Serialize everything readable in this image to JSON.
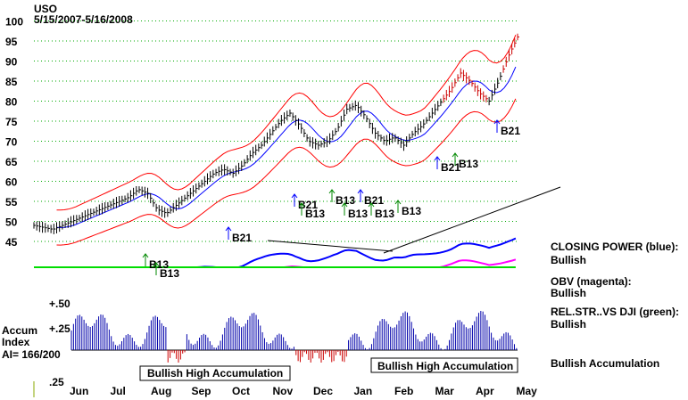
{
  "chart_data": {
    "type": "line",
    "title": "USO",
    "subtitle": "5/15/2007-5/16/2008",
    "price_axis": {
      "ticks": [
        45,
        50,
        55,
        60,
        65,
        70,
        75,
        80,
        85,
        90,
        95,
        100
      ],
      "ylim": [
        42,
        104
      ]
    },
    "months": [
      "Jun",
      "Jul",
      "Aug",
      "Sep",
      "Oct",
      "Nov",
      "Dec",
      "Jan",
      "Feb",
      "Mar",
      "Apr",
      "May"
    ],
    "price_series": {
      "name": "USO price",
      "x": [
        0,
        5,
        10,
        15,
        20,
        25,
        30,
        35,
        40,
        45,
        50,
        55,
        60,
        65,
        70,
        75,
        80,
        85,
        90,
        95,
        100,
        105,
        110,
        115,
        120,
        125,
        130,
        135,
        140,
        145,
        150,
        155,
        160,
        165,
        170,
        175,
        180,
        185,
        190,
        195,
        200,
        205,
        210,
        215,
        220,
        225,
        230,
        235,
        240,
        245,
        250,
        255
      ],
      "values": [
        49,
        48.5,
        48,
        49,
        50,
        51,
        52,
        53,
        54,
        55,
        56,
        58,
        57,
        53,
        52,
        54,
        56,
        58,
        60,
        62,
        63,
        62,
        64,
        67,
        69,
        72,
        75,
        77,
        74,
        70,
        69,
        70,
        73,
        78,
        79,
        76,
        72,
        70,
        71,
        69,
        72,
        74,
        77,
        80,
        83,
        87,
        85,
        82,
        80,
        85,
        91,
        96
      ]
    },
    "series": [
      {
        "name": "Closing Power",
        "color": "#0000ff",
        "trend": "Bullish"
      },
      {
        "name": "OBV",
        "color": "#ff00ff",
        "trend": "Bullish"
      },
      {
        "name": "Rel.Str. vs DJI",
        "color": "#00dd00",
        "trend": "Bullish"
      },
      {
        "name": "Upper band",
        "color": "#ff0000"
      },
      {
        "name": "Lower band",
        "color": "#ff0000"
      },
      {
        "name": "Moving average",
        "color": "#0000ff"
      }
    ],
    "signals": [
      {
        "label": "B13",
        "type": "buy"
      },
      {
        "label": "B13",
        "type": "buy"
      },
      {
        "label": "B21",
        "type": "buy"
      },
      {
        "label": "B13",
        "type": "buy"
      },
      {
        "label": "B21",
        "type": "buy"
      },
      {
        "label": "B13",
        "type": "buy"
      },
      {
        "label": "B13",
        "type": "buy"
      },
      {
        "label": "B21",
        "type": "buy"
      },
      {
        "label": "B13",
        "type": "buy"
      },
      {
        "label": "B13",
        "type": "buy"
      },
      {
        "label": "B21",
        "type": "buy"
      },
      {
        "label": "B13",
        "type": "buy"
      },
      {
        "label": "B21",
        "type": "buy"
      }
    ],
    "accum_axis": {
      "ticks": [
        "+.50",
        "+.25",
        ".25"
      ],
      "ylim": [
        -0.25,
        0.5
      ]
    },
    "accum_label": [
      "Accum",
      "Index"
    ],
    "ai_value": "AI= 166/200",
    "accum_boxes": [
      "Bullish High Accumulation",
      "Bullish High Accumulation"
    ],
    "legend": [
      {
        "label": "CLOSING POWER (blue):",
        "status": "Bullish"
      },
      {
        "label": "OBV (magenta):",
        "status": "Bullish"
      },
      {
        "label": "REL.STR..VS DJI (green):",
        "status": "Bullish"
      }
    ],
    "accum_status": "Bullish Accumulation"
  },
  "colors": {
    "price": "#000000",
    "bands": "#ff0000",
    "ma": "#0000ff",
    "grid": "#00aa00",
    "accum": "#0000aa"
  }
}
